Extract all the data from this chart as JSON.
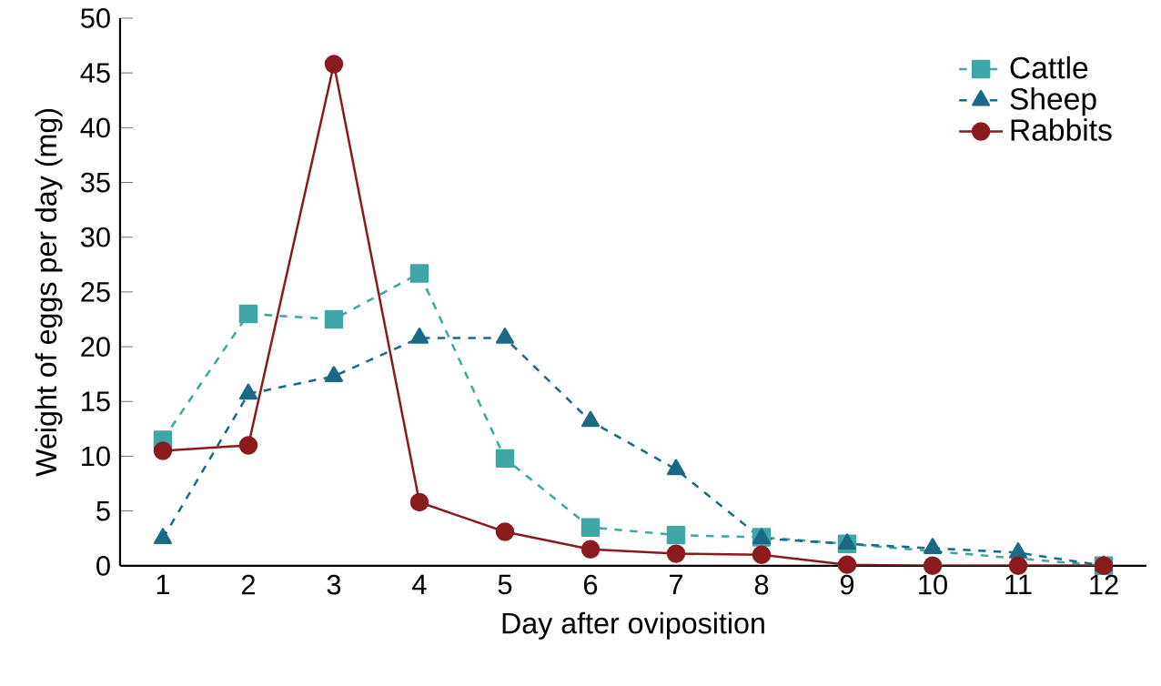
{
  "chart_data": {
    "type": "line",
    "xlabel": "Day after oviposition",
    "ylabel": "Weight of eggs per day (mg)",
    "x": [
      1,
      2,
      3,
      4,
      5,
      6,
      7,
      8,
      9,
      10,
      11,
      12
    ],
    "xlim": [
      0.5,
      12.5
    ],
    "xticks": [
      1,
      2,
      3,
      4,
      5,
      6,
      7,
      8,
      9,
      10,
      11,
      12
    ],
    "ylim": [
      0,
      50
    ],
    "yticks": [
      0,
      5,
      10,
      15,
      20,
      25,
      30,
      35,
      40,
      45,
      50
    ],
    "legend": "top right",
    "grid": false,
    "series": [
      {
        "name": "Cattle",
        "color": "#3fa6a6",
        "marker": "square",
        "line_style": "dashed",
        "values": [
          11.5,
          23,
          22.5,
          26.7,
          9.8,
          3.5,
          2.8,
          2.6,
          2,
          null,
          null,
          0
        ]
      },
      {
        "name": "Sheep",
        "color": "#1a6a86",
        "marker": "triangle",
        "line_style": "dashed",
        "values": [
          2.5,
          15.7,
          17.3,
          20.8,
          20.8,
          13.2,
          8.8,
          2.5,
          2,
          1.6,
          1.2,
          0
        ]
      },
      {
        "name": "Rabbits",
        "color": "#8b1a1f",
        "marker": "circle",
        "line_style": "solid",
        "values": [
          10.5,
          11,
          45.8,
          5.8,
          3.1,
          1.5,
          1.1,
          1,
          0.1,
          0,
          0,
          0
        ]
      }
    ]
  }
}
